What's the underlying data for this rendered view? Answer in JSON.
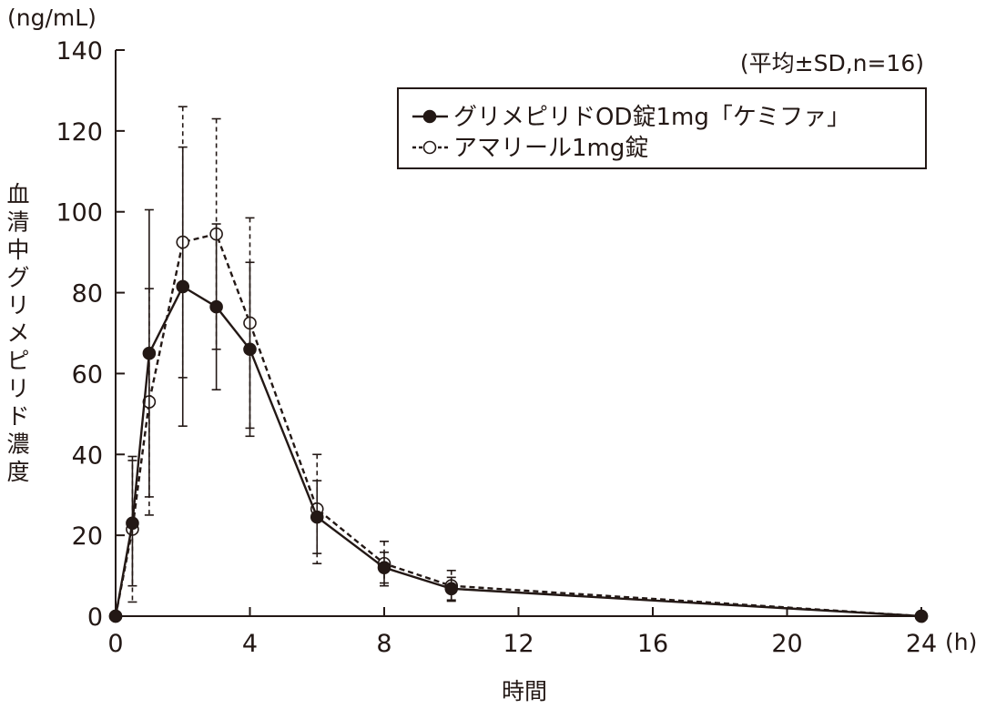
{
  "chart_data": {
    "type": "line",
    "y_unit": "(ng/mL)",
    "x_unit": "(h)",
    "xlabel": "時間",
    "ylabel": "血清中グリメピリド濃度",
    "annotation": "(平均±SD,n=16)",
    "xlim": [
      0,
      24
    ],
    "ylim": [
      0,
      140
    ],
    "x_ticks": [
      0,
      4,
      8,
      12,
      16,
      20,
      24
    ],
    "y_ticks": [
      0,
      20,
      40,
      60,
      80,
      100,
      120,
      140
    ],
    "grid": false,
    "legend_position": "top-right",
    "series": [
      {
        "name": "グリメピリドOD錠1mg「ケミファ」",
        "marker": "filled-circle",
        "line_style": "solid",
        "color": "#231815",
        "x": [
          0,
          0.5,
          1,
          2,
          3,
          4,
          6,
          8,
          10,
          24
        ],
        "y": [
          0,
          23,
          65,
          81.5,
          76.5,
          66,
          24.5,
          12,
          6.8,
          0
        ],
        "sd": [
          0,
          15.5,
          35.5,
          34.5,
          20.5,
          21.5,
          9,
          3.8,
          2.8,
          0
        ]
      },
      {
        "name": "アマリール1mg錠",
        "marker": "open-circle",
        "line_style": "dashed",
        "color": "#231815",
        "x": [
          0,
          0.5,
          1,
          2,
          3,
          4,
          6,
          8,
          10,
          24
        ],
        "y": [
          0,
          21.5,
          53,
          92.5,
          94.5,
          72.5,
          26.5,
          13,
          7.5,
          0
        ],
        "sd": [
          0,
          18,
          28,
          33.5,
          28.5,
          26,
          13.5,
          5.5,
          3.8,
          0
        ]
      }
    ]
  }
}
